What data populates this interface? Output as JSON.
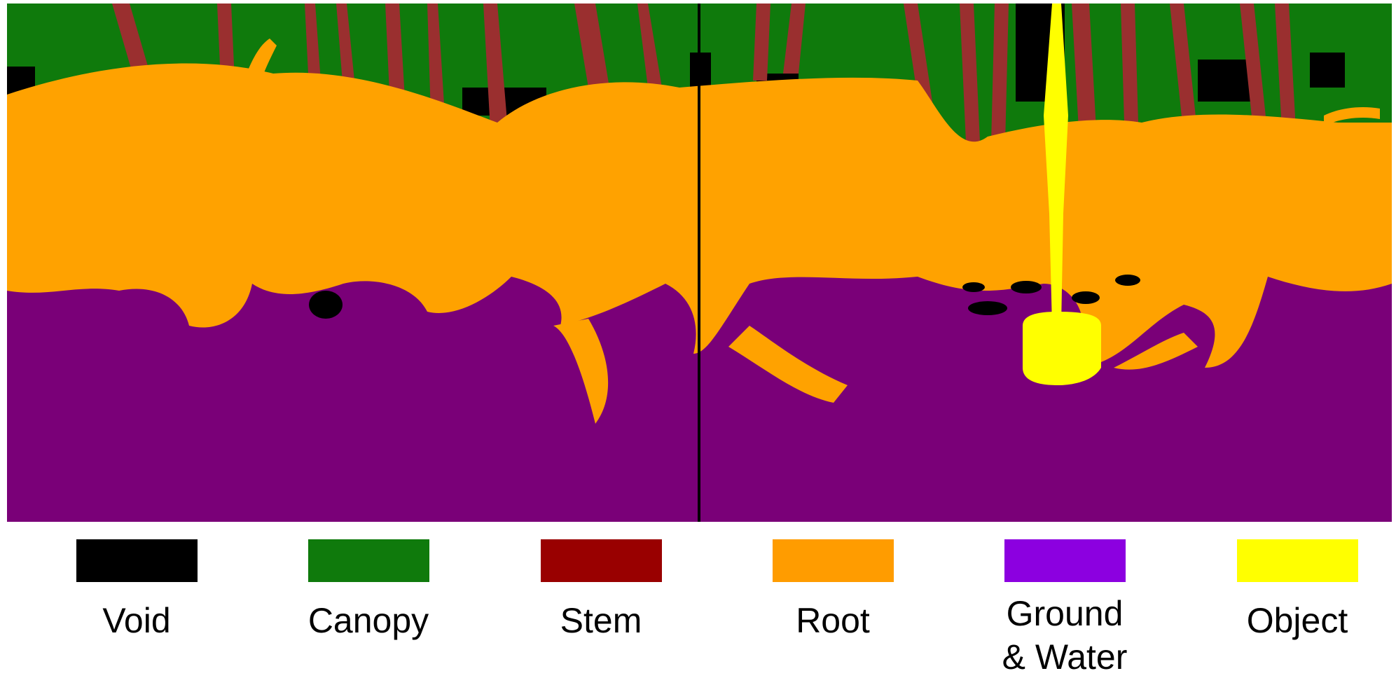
{
  "colors": {
    "background": "#ffffff",
    "void": "#000000",
    "canopy": "#0f7a0c",
    "stem": "#9a2f2f",
    "root": "#ffa200",
    "ground": "#7a0078",
    "object": "#ffff00"
  },
  "legend": {
    "items": [
      {
        "label": "Void",
        "color": "#000000"
      },
      {
        "label": "Canopy",
        "color": "#0f7a0c"
      },
      {
        "label": "Stem",
        "color": "#990000"
      },
      {
        "label": "Root",
        "color": "#ff9c00"
      },
      {
        "label": "Ground\n& Water",
        "color": "#8c00e0"
      },
      {
        "label": "Object",
        "color": "#ffff00"
      }
    ]
  }
}
